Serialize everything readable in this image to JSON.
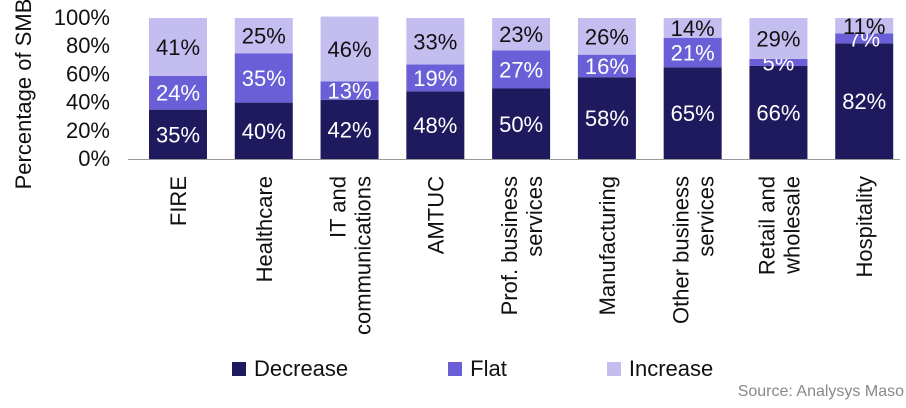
{
  "chart_data": {
    "type": "bar",
    "stacked": true,
    "ylabel": "Percentage of SMBs",
    "ylim": [
      0,
      100
    ],
    "yticks": [
      "0%",
      "20%",
      "40%",
      "60%",
      "80%",
      "100%"
    ],
    "categories": [
      [
        "FIRE"
      ],
      [
        "Healthcare"
      ],
      [
        "IT and",
        "communications"
      ],
      [
        "AMTUC"
      ],
      [
        "Prof. business",
        "services"
      ],
      [
        "Manufacturing"
      ],
      [
        "Other business",
        "services"
      ],
      [
        "Retail and",
        "wholesale"
      ],
      [
        "Hospitality"
      ]
    ],
    "series": [
      {
        "name": "Decrease",
        "color": "#1f1a5e",
        "values": [
          35,
          40,
          42,
          48,
          50,
          58,
          65,
          66,
          82
        ]
      },
      {
        "name": "Flat",
        "color": "#6a5fd6",
        "values": [
          24,
          35,
          13,
          19,
          27,
          16,
          21,
          5,
          7
        ]
      },
      {
        "name": "Increase",
        "color": "#c3bdf0",
        "values": [
          41,
          25,
          46,
          33,
          23,
          26,
          14,
          29,
          11
        ]
      }
    ],
    "grid": false,
    "legend_position": "bottom"
  },
  "source": "Source: Analysys Maso"
}
